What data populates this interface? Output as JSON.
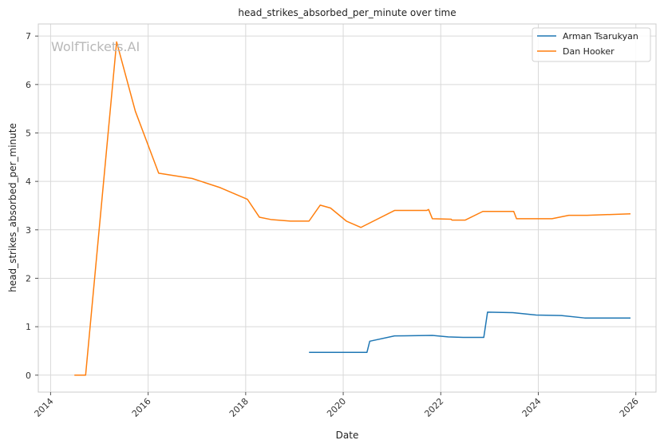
{
  "chart_data": {
    "type": "line",
    "title": "head_strikes_absorbed_per_minute over time",
    "xlabel": "Date",
    "ylabel": "head_strikes_absorbed_per_minute",
    "watermark": "WolfTickets.AI",
    "xlim": [
      "2013-10-01",
      "2026-06-01"
    ],
    "ylim": [
      -0.35,
      7.25
    ],
    "x_ticks": [
      "2014",
      "2016",
      "2018",
      "2020",
      "2022",
      "2024",
      "2026"
    ],
    "y_ticks": [
      "0",
      "1",
      "2",
      "3",
      "4",
      "5",
      "6",
      "7"
    ],
    "grid": true,
    "legend_position": "top-right",
    "series": [
      {
        "name": "Arman Tsarukyan",
        "color": "#1f77b4",
        "points": [
          [
            "2019-04-20",
            0.47
          ],
          [
            "2020-06-27",
            0.47
          ],
          [
            "2020-07-18",
            0.7
          ],
          [
            "2021-01-20",
            0.81
          ],
          [
            "2021-10-30",
            0.82
          ],
          [
            "2022-02-26",
            0.79
          ],
          [
            "2022-06-18",
            0.78
          ],
          [
            "2022-11-19",
            0.78
          ],
          [
            "2022-12-17",
            1.3
          ],
          [
            "2023-06-24",
            1.29
          ],
          [
            "2023-12-16",
            1.24
          ],
          [
            "2024-06-22",
            1.23
          ],
          [
            "2024-12-14",
            1.18
          ],
          [
            "2025-11-22",
            1.18
          ]
        ]
      },
      {
        "name": "Dan Hooker",
        "color": "#ff7f0e",
        "points": [
          [
            "2014-06-28",
            0.0
          ],
          [
            "2014-09-20",
            0.0
          ],
          [
            "2015-05-10",
            6.88
          ],
          [
            "2015-09-27",
            5.45
          ],
          [
            "2016-03-20",
            4.17
          ],
          [
            "2016-11-27",
            4.06
          ],
          [
            "2017-06-25",
            3.87
          ],
          [
            "2018-01-14",
            3.63
          ],
          [
            "2018-04-14",
            3.26
          ],
          [
            "2018-07-14",
            3.21
          ],
          [
            "2018-12-02",
            3.18
          ],
          [
            "2019-04-20",
            3.18
          ],
          [
            "2019-07-13",
            3.51
          ],
          [
            "2019-09-28",
            3.45
          ],
          [
            "2020-01-25",
            3.18
          ],
          [
            "2020-05-13",
            3.05
          ],
          [
            "2021-01-20",
            3.4
          ],
          [
            "2021-09-18",
            3.4
          ],
          [
            "2021-10-02",
            3.42
          ],
          [
            "2021-10-30",
            3.23
          ],
          [
            "2022-03-19",
            3.22
          ],
          [
            "2022-03-26",
            3.2
          ],
          [
            "2022-07-02",
            3.2
          ],
          [
            "2022-11-12",
            3.38
          ],
          [
            "2023-07-01",
            3.38
          ],
          [
            "2023-07-22",
            3.23
          ],
          [
            "2024-04-13",
            3.23
          ],
          [
            "2024-08-17",
            3.3
          ],
          [
            "2025-01-01",
            3.3
          ],
          [
            "2025-11-22",
            3.33
          ]
        ]
      }
    ]
  }
}
